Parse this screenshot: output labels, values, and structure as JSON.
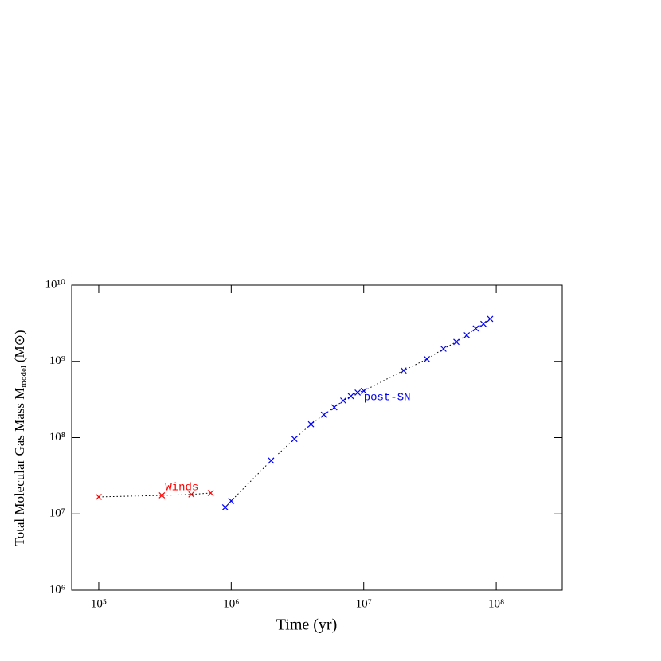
{
  "chart_data": {
    "type": "scatter",
    "xlabel": "Time (yr)",
    "ylabel": {
      "main": "Total Molecular Gas Mass M",
      "sub": "model",
      "unit": "(M⊙)"
    },
    "xscale": "log",
    "yscale": "log",
    "xlim": [
      62500,
      315000000
    ],
    "ylim": [
      1000000,
      10000000000
    ],
    "xticks": [
      {
        "value": 100000,
        "label": "10⁵"
      },
      {
        "value": 1000000,
        "label": "10⁶"
      },
      {
        "value": 10000000,
        "label": "10⁷"
      },
      {
        "value": 100000000,
        "label": "10⁸"
      }
    ],
    "yticks": [
      {
        "value": 1000000,
        "label": "10⁶"
      },
      {
        "value": 10000000,
        "label": "10⁷"
      },
      {
        "value": 100000000,
        "label": "10⁸"
      },
      {
        "value": 1000000000,
        "label": "10⁹"
      },
      {
        "value": 10000000000,
        "label": "10¹⁰"
      }
    ],
    "series": [
      {
        "name": "Winds",
        "color": "#ff0000",
        "x": [
          100000,
          300000,
          500000,
          700000
        ],
        "values": [
          16700000,
          17500000,
          18000000,
          18800000
        ]
      },
      {
        "name": "post-SN",
        "color": "#0000ff",
        "x": [
          900000,
          1000000,
          2000000,
          3000000,
          4000000,
          5000000,
          6000000,
          7000000,
          8000000,
          9000000,
          10000000,
          20000000,
          30000000,
          40000000,
          50000000,
          60000000,
          70000000,
          80000000,
          90000000
        ],
        "values": [
          12200000,
          14800000,
          50000000,
          96000000,
          150000000,
          200000000,
          250000000,
          306000000,
          350000000,
          390000000,
          410000000,
          760000000,
          1070000000,
          1460000000,
          1800000000,
          2200000000,
          2700000000,
          3100000000,
          3600000000
        ]
      }
    ]
  }
}
